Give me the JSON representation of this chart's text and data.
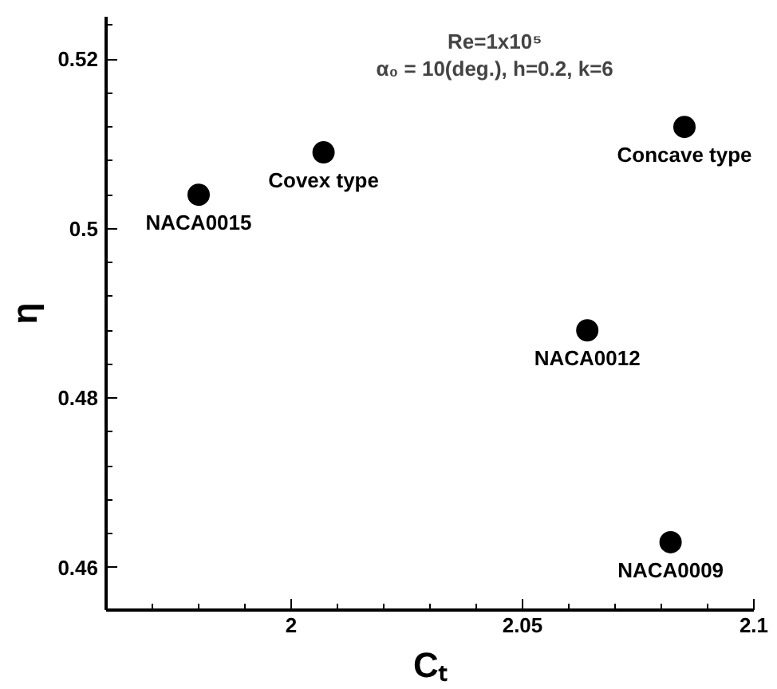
{
  "chart_data": {
    "type": "scatter",
    "xlabel": "Cₜ",
    "ylabel": "η",
    "x": [
      1.98,
      2.007,
      2.085,
      2.064,
      2.082
    ],
    "values": [
      0.504,
      0.509,
      0.512,
      0.488,
      0.463
    ],
    "color": "#000000",
    "marker": "circle",
    "grid": false,
    "xlim": [
      1.96,
      2.1
    ],
    "ylim": [
      0.455,
      0.525
    ],
    "xticks": [
      {
        "value": 1.97,
        "label": null
      },
      {
        "value": 1.98,
        "label": null
      },
      {
        "value": 1.99,
        "label": null
      },
      2,
      {
        "value": 2.01,
        "label": null
      },
      {
        "value": 2.02,
        "label": null
      },
      {
        "value": 2.03,
        "label": null
      },
      {
        "value": 2.04,
        "label": null
      },
      2.05,
      {
        "value": 2.06,
        "label": null
      },
      {
        "value": 2.07,
        "label": null
      },
      {
        "value": 2.08,
        "label": null
      },
      {
        "value": 2.09,
        "label": null
      },
      2.1
    ],
    "yticks": [
      0.46,
      {
        "value": 0.464,
        "label": null
      },
      {
        "value": 0.468,
        "label": null
      },
      {
        "value": 0.472,
        "label": null
      },
      {
        "value": 0.476,
        "label": null
      },
      0.48,
      {
        "value": 0.484,
        "label": null
      },
      {
        "value": 0.488,
        "label": null
      },
      {
        "value": 0.492,
        "label": null
      },
      {
        "value": 0.496,
        "label": null
      },
      0.5,
      {
        "value": 0.504,
        "label": null
      },
      {
        "value": 0.508,
        "label": null
      },
      {
        "value": 0.512,
        "label": null
      },
      {
        "value": 0.516,
        "label": null
      },
      0.52,
      {
        "value": 0.524,
        "label": null
      }
    ],
    "annotations": [
      "Re=1x10⁵",
      "α₀ = 10(deg.), h=0.2, k=6",
      {
        "text": "NACA0015",
        "x": 1.98,
        "y": 0.504
      },
      {
        "text": "Covex type",
        "x": 2.007,
        "y": 0.509
      },
      {
        "text": "Concave type",
        "x": 2.085,
        "y": 0.512
      },
      {
        "text": "NACA0012",
        "x": 2.064,
        "y": 0.488
      },
      {
        "text": "NACA0009",
        "x": 2.082,
        "y": 0.463
      }
    ]
  }
}
